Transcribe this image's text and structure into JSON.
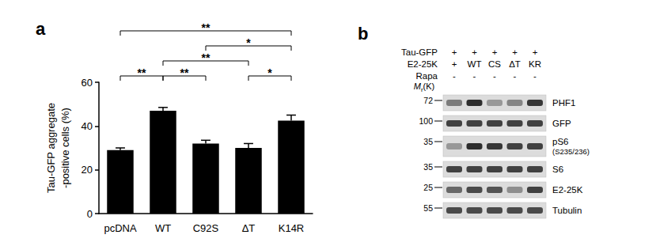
{
  "chart_data": {
    "type": "bar",
    "title": "a",
    "categories": [
      "pcDNA",
      "WT",
      "C92S",
      "ΔT",
      "K14R"
    ],
    "values": [
      29,
      47,
      32,
      30,
      42.5
    ],
    "errors": [
      1,
      1.5,
      1.5,
      2,
      2.5
    ],
    "color": "#000000",
    "ylabel": "Tau-GFP aggregate\n-positive cells (%)",
    "ylim": [
      0,
      60
    ],
    "yticks": [
      0,
      20,
      40,
      60
    ],
    "grid": false,
    "comparisons": [
      {
        "from": "pcDNA",
        "to": "K14R",
        "label": "**"
      },
      {
        "from": "WT",
        "to": "ΔT",
        "label": "**"
      },
      {
        "from": "C92S",
        "to": "K14R",
        "label": "*"
      },
      {
        "from": "pcDNA",
        "to": "WT",
        "label": "**"
      },
      {
        "from": "WT",
        "to": "C92S",
        "label": "**"
      },
      {
        "from": "ΔT",
        "to": "K14R",
        "label": "*"
      }
    ]
  },
  "blot": {
    "title": "b",
    "conditions": [
      {
        "label": "Tau-GFP",
        "lanes": [
          "+",
          "+",
          "+",
          "+",
          "+"
        ]
      },
      {
        "label": "E2-25K",
        "lanes": [
          "+",
          "WT",
          "CS",
          "ΔT",
          "KR"
        ]
      },
      {
        "label": "Rapa",
        "lanes": [
          "-",
          "-",
          "-",
          "-",
          "-"
        ]
      }
    ],
    "marker_unit": {
      "symbol": "M",
      "subscript": "r",
      "unit": "(K)"
    },
    "rows": [
      {
        "label": "PHF1",
        "marker": 72,
        "intensities": [
          0.5,
          0.9,
          0.35,
          0.45,
          0.85
        ]
      },
      {
        "label": "GFP",
        "marker": 100,
        "intensities": [
          0.8,
          0.8,
          0.8,
          0.8,
          0.8
        ]
      },
      {
        "label": "pS6",
        "sublabel": "(S235/236)",
        "marker": 35,
        "intensities": [
          0.35,
          0.9,
          0.85,
          0.8,
          0.8
        ]
      },
      {
        "label": "S6",
        "marker": 35,
        "intensities": [
          0.8,
          0.8,
          0.8,
          0.8,
          0.8
        ]
      },
      {
        "label": "E2-25K",
        "marker": 25,
        "intensities": [
          0.6,
          0.75,
          0.7,
          0.4,
          0.8
        ]
      },
      {
        "label": "Tubulin",
        "marker": 55,
        "intensities": [
          0.75,
          0.75,
          0.75,
          0.75,
          0.75
        ]
      }
    ]
  }
}
